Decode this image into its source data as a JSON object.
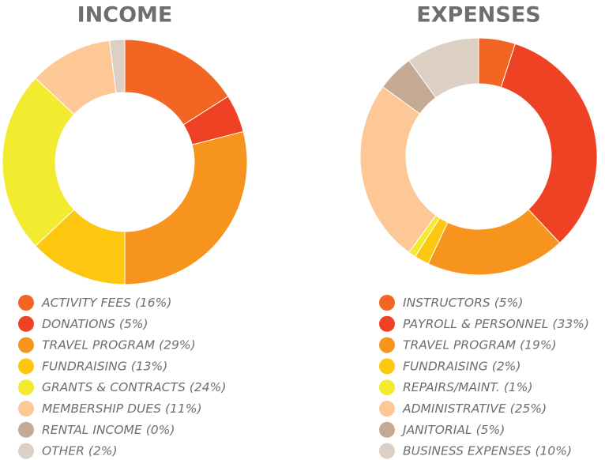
{
  "chart_data": [
    {
      "type": "pie",
      "title": "INCOME",
      "categories": [
        "ACTIVITY FEES",
        "DONATIONS",
        "TRAVEL PROGRAM",
        "FUNDRAISING",
        "GRANTS & CONTRACTS",
        "MEMBERSHIP DUES",
        "RENTAL INCOME",
        "OTHER"
      ],
      "values": [
        16,
        5,
        29,
        13,
        24,
        11,
        0,
        2
      ],
      "value_labels": [
        "(16%)",
        "(5%)",
        "(29%)",
        "(13%)",
        "(24%)",
        "(11%)",
        "(0%)",
        "(2%)"
      ],
      "colors": [
        "#f26522",
        "#ef4123",
        "#f7941d",
        "#fdc70f",
        "#f3eb30",
        "#fdc896",
        "#c4aa94",
        "#dccfc3"
      ]
    },
    {
      "type": "pie",
      "title": "EXPENSES",
      "categories": [
        "INSTRUCTORS",
        "PAYROLL & PERSONNEL",
        "TRAVEL PROGRAM",
        "FUNDRAISING",
        "REPAIRS/MAINT.",
        "ADMINISTRATIVE",
        "JANITORIAL",
        "BUSINESS EXPENSES"
      ],
      "values": [
        5,
        33,
        19,
        2,
        1,
        25,
        5,
        10
      ],
      "value_labels": [
        "(5%)",
        "(33%)",
        "(19%)",
        "(2%)",
        "(1%)",
        "(25%)",
        "(5%)",
        "(10%)"
      ],
      "colors": [
        "#f26522",
        "#ef4123",
        "#f7941d",
        "#fdc70f",
        "#f3eb30",
        "#fdc896",
        "#c4aa94",
        "#dccfc3"
      ]
    }
  ]
}
